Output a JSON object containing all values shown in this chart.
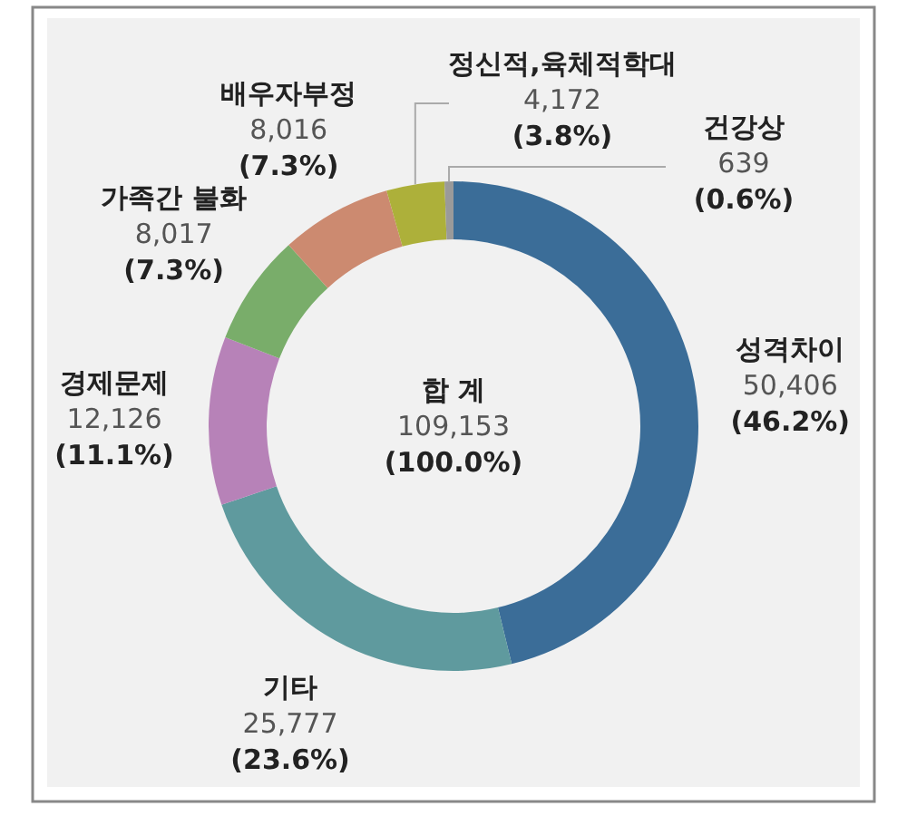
{
  "chart_data": {
    "type": "donut",
    "categories": [
      "성격차이",
      "기타",
      "경제문제",
      "가족간 불화",
      "배우자부정",
      "정신적,육체적학대",
      "건강상"
    ],
    "values": [
      50406,
      25777,
      12126,
      8017,
      8016,
      4172,
      639
    ],
    "colors": [
      "#3b6d98",
      "#5f9a9e",
      "#b782b8",
      "#79ad6a",
      "#cc8a70",
      "#adb03a",
      "#9a9a9a"
    ],
    "value_labels": [
      "50,406\n(46.2%)",
      "25,777\n(23.6%)",
      "12,126\n(11.1%)",
      "8,017\n(7.3%)",
      "8,016\n(7.3%)",
      "4,172\n(3.8%)",
      "639\n(0.6%)"
    ],
    "annotations": [
      "합 계\n109,153\n(100.0%)"
    ]
  }
}
